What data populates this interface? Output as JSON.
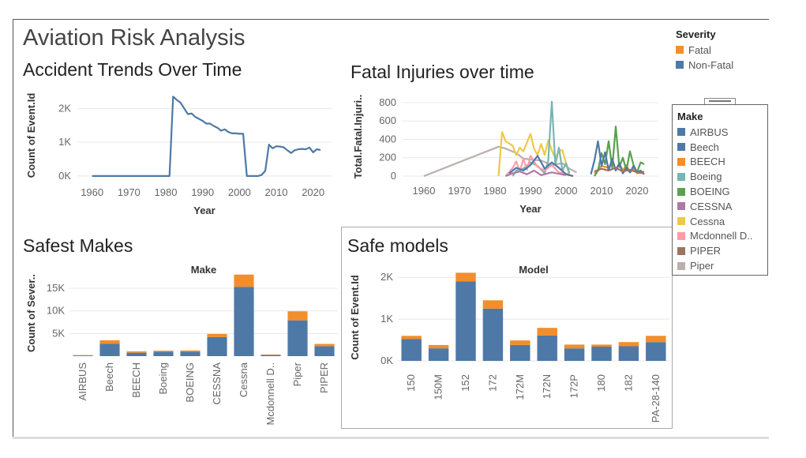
{
  "dashboard": {
    "title": "Aviation Risk Analysis",
    "colors": {
      "fatal": "#f28e2b",
      "non_fatal": "#4e79a7"
    }
  },
  "severity_legend": {
    "title": "Severity",
    "items": [
      {
        "label": "Fatal",
        "color": "#f28e2b"
      },
      {
        "label": "Non-Fatal",
        "color": "#4e79a7"
      }
    ]
  },
  "make_legend": {
    "title": "Make",
    "items": [
      {
        "label": "AIRBUS",
        "color": "#4e79a7"
      },
      {
        "label": "Beech",
        "color": "#4e79a7"
      },
      {
        "label": "BEECH",
        "color": "#f28e2b"
      },
      {
        "label": "Boeing",
        "color": "#76b7b2"
      },
      {
        "label": "BOEING",
        "color": "#59a14f"
      },
      {
        "label": "CESSNA",
        "color": "#af7aa1"
      },
      {
        "label": "Cessna",
        "color": "#edc948"
      },
      {
        "label": "Mcdonnell D..",
        "color": "#ff9da7"
      },
      {
        "label": "PIPER",
        "color": "#9c755f"
      },
      {
        "label": "Piper",
        "color": "#bab0ac"
      }
    ]
  },
  "chart_data": [
    {
      "id": "accident_trends",
      "type": "line",
      "title": "Accident Trends Over Time",
      "xlabel": "Year",
      "ylabel": "Count of Event.Id",
      "xlim": [
        1956,
        2025
      ],
      "ylim": [
        -50,
        2450
      ],
      "xticks": [
        1960,
        1970,
        1980,
        1990,
        2000,
        2010,
        2020
      ],
      "yticks": [
        {
          "v": 0,
          "label": "0K"
        },
        {
          "v": 1000,
          "label": "1K"
        },
        {
          "v": 2000,
          "label": "2K"
        }
      ],
      "series": [
        {
          "color": "#4e79a7",
          "points": [
            [
              1960,
              0
            ],
            [
              1962,
              0
            ],
            [
              1970,
              0
            ],
            [
              1975,
              0
            ],
            [
              1980,
              0
            ],
            [
              1981,
              0
            ],
            [
              1982,
              2350
            ],
            [
              1983,
              2250
            ],
            [
              1984,
              2170
            ],
            [
              1985,
              2000
            ],
            [
              1986,
              1830
            ],
            [
              1987,
              1850
            ],
            [
              1988,
              1750
            ],
            [
              1989,
              1690
            ],
            [
              1990,
              1630
            ],
            [
              1991,
              1550
            ],
            [
              1992,
              1550
            ],
            [
              1993,
              1480
            ],
            [
              1994,
              1430
            ],
            [
              1995,
              1340
            ],
            [
              1996,
              1380
            ],
            [
              1997,
              1300
            ],
            [
              1998,
              1260
            ],
            [
              1999,
              1260
            ],
            [
              2000,
              1250
            ],
            [
              2001,
              1250
            ],
            [
              2002,
              0
            ],
            [
              2003,
              0
            ],
            [
              2004,
              0
            ],
            [
              2005,
              0
            ],
            [
              2006,
              30
            ],
            [
              2007,
              150
            ],
            [
              2008,
              930
            ],
            [
              2009,
              820
            ],
            [
              2010,
              880
            ],
            [
              2011,
              870
            ],
            [
              2012,
              850
            ],
            [
              2013,
              760
            ],
            [
              2014,
              680
            ],
            [
              2015,
              760
            ],
            [
              2016,
              790
            ],
            [
              2017,
              800
            ],
            [
              2018,
              790
            ],
            [
              2019,
              840
            ],
            [
              2020,
              700
            ],
            [
              2021,
              790
            ],
            [
              2022,
              770
            ]
          ]
        }
      ]
    },
    {
      "id": "fatal_injuries",
      "type": "line",
      "title": "Fatal Injuries over time",
      "xlabel": "Year",
      "ylabel": "Total.Fatal.Injuri..",
      "xlim": [
        1954,
        2026
      ],
      "ylim": [
        0,
        860
      ],
      "xticks": [
        1960,
        1970,
        1980,
        1990,
        2000,
        2010,
        2020
      ],
      "yticks": [
        {
          "v": 0,
          "label": "0"
        },
        {
          "v": 200,
          "label": "200"
        },
        {
          "v": 400,
          "label": "400"
        },
        {
          "v": 600,
          "label": "600"
        },
        {
          "v": 800,
          "label": "800"
        }
      ],
      "series": [
        {
          "name": "Piper",
          "color": "#bab0ac",
          "points": [
            [
              1960,
              0
            ],
            [
              1981,
              320
            ],
            [
              1983,
              300
            ],
            [
              1986,
              250
            ],
            [
              1988,
              190
            ],
            [
              1990,
              180
            ],
            [
              1993,
              170
            ],
            [
              1996,
              120
            ],
            [
              1999,
              140
            ],
            [
              2001,
              80
            ],
            [
              2003,
              40
            ]
          ]
        },
        {
          "name": "Cessna",
          "color": "#edc948",
          "points": [
            [
              1981,
              0
            ],
            [
              1982,
              480
            ],
            [
              1983,
              380
            ],
            [
              1985,
              330
            ],
            [
              1986,
              230
            ],
            [
              1987,
              310
            ],
            [
              1988,
              270
            ],
            [
              1990,
              460
            ],
            [
              1991,
              300
            ],
            [
              1992,
              230
            ],
            [
              1993,
              350
            ],
            [
              1994,
              230
            ],
            [
              1995,
              390
            ],
            [
              1996,
              280
            ],
            [
              1997,
              190
            ],
            [
              1998,
              280
            ],
            [
              1999,
              280
            ],
            [
              2001,
              0
            ]
          ]
        },
        {
          "name": "Boeing",
          "color": "#76b7b2",
          "points": [
            [
              1985,
              0
            ],
            [
              1986,
              60
            ],
            [
              1988,
              80
            ],
            [
              1990,
              150
            ],
            [
              1992,
              110
            ],
            [
              1994,
              30
            ],
            [
              1995,
              170
            ],
            [
              1996,
              810
            ],
            [
              1997,
              120
            ],
            [
              1998,
              310
            ],
            [
              1999,
              60
            ],
            [
              2000,
              140
            ],
            [
              2001,
              30
            ]
          ]
        },
        {
          "name": "Mcdonnell D..",
          "color": "#ff9da7",
          "points": [
            [
              1983,
              0
            ],
            [
              1985,
              90
            ],
            [
              1986,
              160
            ],
            [
              1987,
              50
            ],
            [
              1988,
              190
            ],
            [
              1989,
              70
            ],
            [
              1990,
              220
            ],
            [
              1992,
              100
            ],
            [
              1994,
              60
            ],
            [
              1996,
              120
            ],
            [
              1998,
              40
            ],
            [
              2001,
              20
            ]
          ]
        },
        {
          "name": "AIRBUS",
          "color": "#4e79a7",
          "points": [
            [
              1984,
              30
            ],
            [
              1986,
              90
            ],
            [
              1988,
              60
            ],
            [
              1990,
              120
            ],
            [
              1992,
              220
            ],
            [
              1994,
              80
            ],
            [
              1996,
              150
            ],
            [
              1998,
              90
            ],
            [
              2000,
              20
            ],
            [
              2002,
              0
            ]
          ]
        },
        {
          "name": "CESSNA",
          "color": "#af7aa1",
          "points": [
            [
              1983,
              0
            ],
            [
              1985,
              30
            ],
            [
              1987,
              50
            ],
            [
              1989,
              20
            ],
            [
              1991,
              60
            ],
            [
              1993,
              10
            ],
            [
              1996,
              40
            ],
            [
              2000,
              10
            ]
          ]
        },
        {
          "name": "BEECH",
          "color": "#f28e2b",
          "points": [
            [
              2008,
              30
            ],
            [
              2010,
              110
            ],
            [
              2012,
              90
            ],
            [
              2013,
              160
            ],
            [
              2014,
              70
            ],
            [
              2015,
              140
            ],
            [
              2016,
              60
            ],
            [
              2017,
              120
            ],
            [
              2018,
              40
            ],
            [
              2019,
              80
            ],
            [
              2020,
              30
            ],
            [
              2022,
              50
            ]
          ]
        },
        {
          "name": "BOEING",
          "color": "#59a14f",
          "points": [
            [
              2008,
              0
            ],
            [
              2009,
              60
            ],
            [
              2010,
              250
            ],
            [
              2011,
              130
            ],
            [
              2012,
              380
            ],
            [
              2013,
              90
            ],
            [
              2014,
              540
            ],
            [
              2015,
              100
            ],
            [
              2016,
              200
            ],
            [
              2017,
              60
            ],
            [
              2018,
              270
            ],
            [
              2019,
              120
            ],
            [
              2020,
              40
            ],
            [
              2021,
              150
            ],
            [
              2022,
              130
            ]
          ]
        },
        {
          "name": "Beech",
          "color": "#4e79a7",
          "points": [
            [
              2007,
              20
            ],
            [
              2008,
              170
            ],
            [
              2009,
              380
            ],
            [
              2010,
              110
            ],
            [
              2011,
              260
            ],
            [
              2012,
              60
            ],
            [
              2013,
              190
            ],
            [
              2014,
              60
            ],
            [
              2015,
              140
            ],
            [
              2016,
              30
            ],
            [
              2017,
              90
            ],
            [
              2018,
              40
            ],
            [
              2019,
              110
            ],
            [
              2020,
              40
            ],
            [
              2021,
              60
            ],
            [
              2022,
              20
            ]
          ]
        },
        {
          "name": "PIPER",
          "color": "#9c755f",
          "points": [
            [
              2008,
              50
            ],
            [
              2010,
              80
            ],
            [
              2012,
              60
            ],
            [
              2014,
              90
            ],
            [
              2016,
              50
            ],
            [
              2018,
              70
            ],
            [
              2020,
              40
            ],
            [
              2022,
              30
            ]
          ]
        }
      ]
    },
    {
      "id": "safest_makes",
      "type": "bar",
      "title": "Safest Makes",
      "header": "Make",
      "ylabel": "Count of Sever..",
      "ylim": [
        0,
        19000
      ],
      "yticks": [
        {
          "v": 5000,
          "label": "5K"
        },
        {
          "v": 10000,
          "label": "10K"
        },
        {
          "v": 15000,
          "label": "15K"
        }
      ],
      "categories": [
        "AIRBUS",
        "Beech",
        "BEECH",
        "Boeing",
        "BOEING",
        "CESSNA",
        "Cessna",
        "Mcdonnell D..",
        "Piper",
        "PIPER"
      ],
      "series": [
        {
          "name": "Non-Fatal",
          "color": "#4e79a7",
          "values": [
            150,
            2700,
            750,
            1000,
            1000,
            4200,
            15300,
            250,
            7900,
            2200
          ]
        },
        {
          "name": "Fatal",
          "color": "#f28e2b",
          "values": [
            80,
            800,
            300,
            200,
            250,
            700,
            2700,
            100,
            2000,
            500
          ]
        }
      ]
    },
    {
      "id": "safe_models",
      "type": "bar",
      "title": "Safe models",
      "header": "Model",
      "ylabel": "Count of Event.Id",
      "ylim": [
        -170,
        2250
      ],
      "yticks": [
        {
          "v": 0,
          "label": "0K"
        },
        {
          "v": 1000,
          "label": "1K"
        },
        {
          "v": 2000,
          "label": "2K"
        }
      ],
      "categories": [
        "150",
        "150M",
        "152",
        "172",
        "172M",
        "172N",
        "172P",
        "180",
        "182",
        "PA-28-140"
      ],
      "series": [
        {
          "name": "Non-Fatal",
          "color": "#4e79a7",
          "values": [
            520,
            300,
            1900,
            1250,
            380,
            610,
            300,
            340,
            350,
            450
          ]
        },
        {
          "name": "Fatal",
          "color": "#f28e2b",
          "values": [
            80,
            80,
            210,
            200,
            110,
            180,
            90,
            50,
            100,
            150
          ]
        }
      ]
    }
  ]
}
